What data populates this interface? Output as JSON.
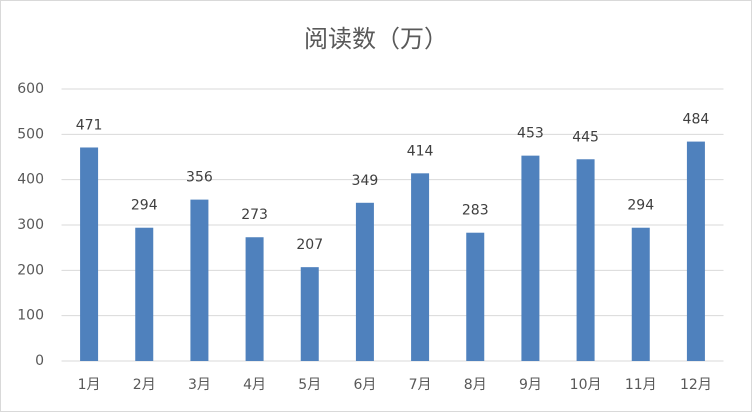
{
  "chart_data": {
    "type": "bar",
    "title": "阅读数（万）",
    "categories": [
      "1月",
      "2月",
      "3月",
      "4月",
      "5月",
      "6月",
      "7月",
      "8月",
      "9月",
      "10月",
      "11月",
      "12月"
    ],
    "values": [
      471,
      294,
      356,
      273,
      207,
      349,
      414,
      283,
      453,
      445,
      294,
      484
    ],
    "color": "#4f81bd",
    "ylim": [
      0,
      600
    ],
    "yticks": [
      0,
      100,
      200,
      300,
      400,
      500,
      600
    ],
    "grid": true
  }
}
